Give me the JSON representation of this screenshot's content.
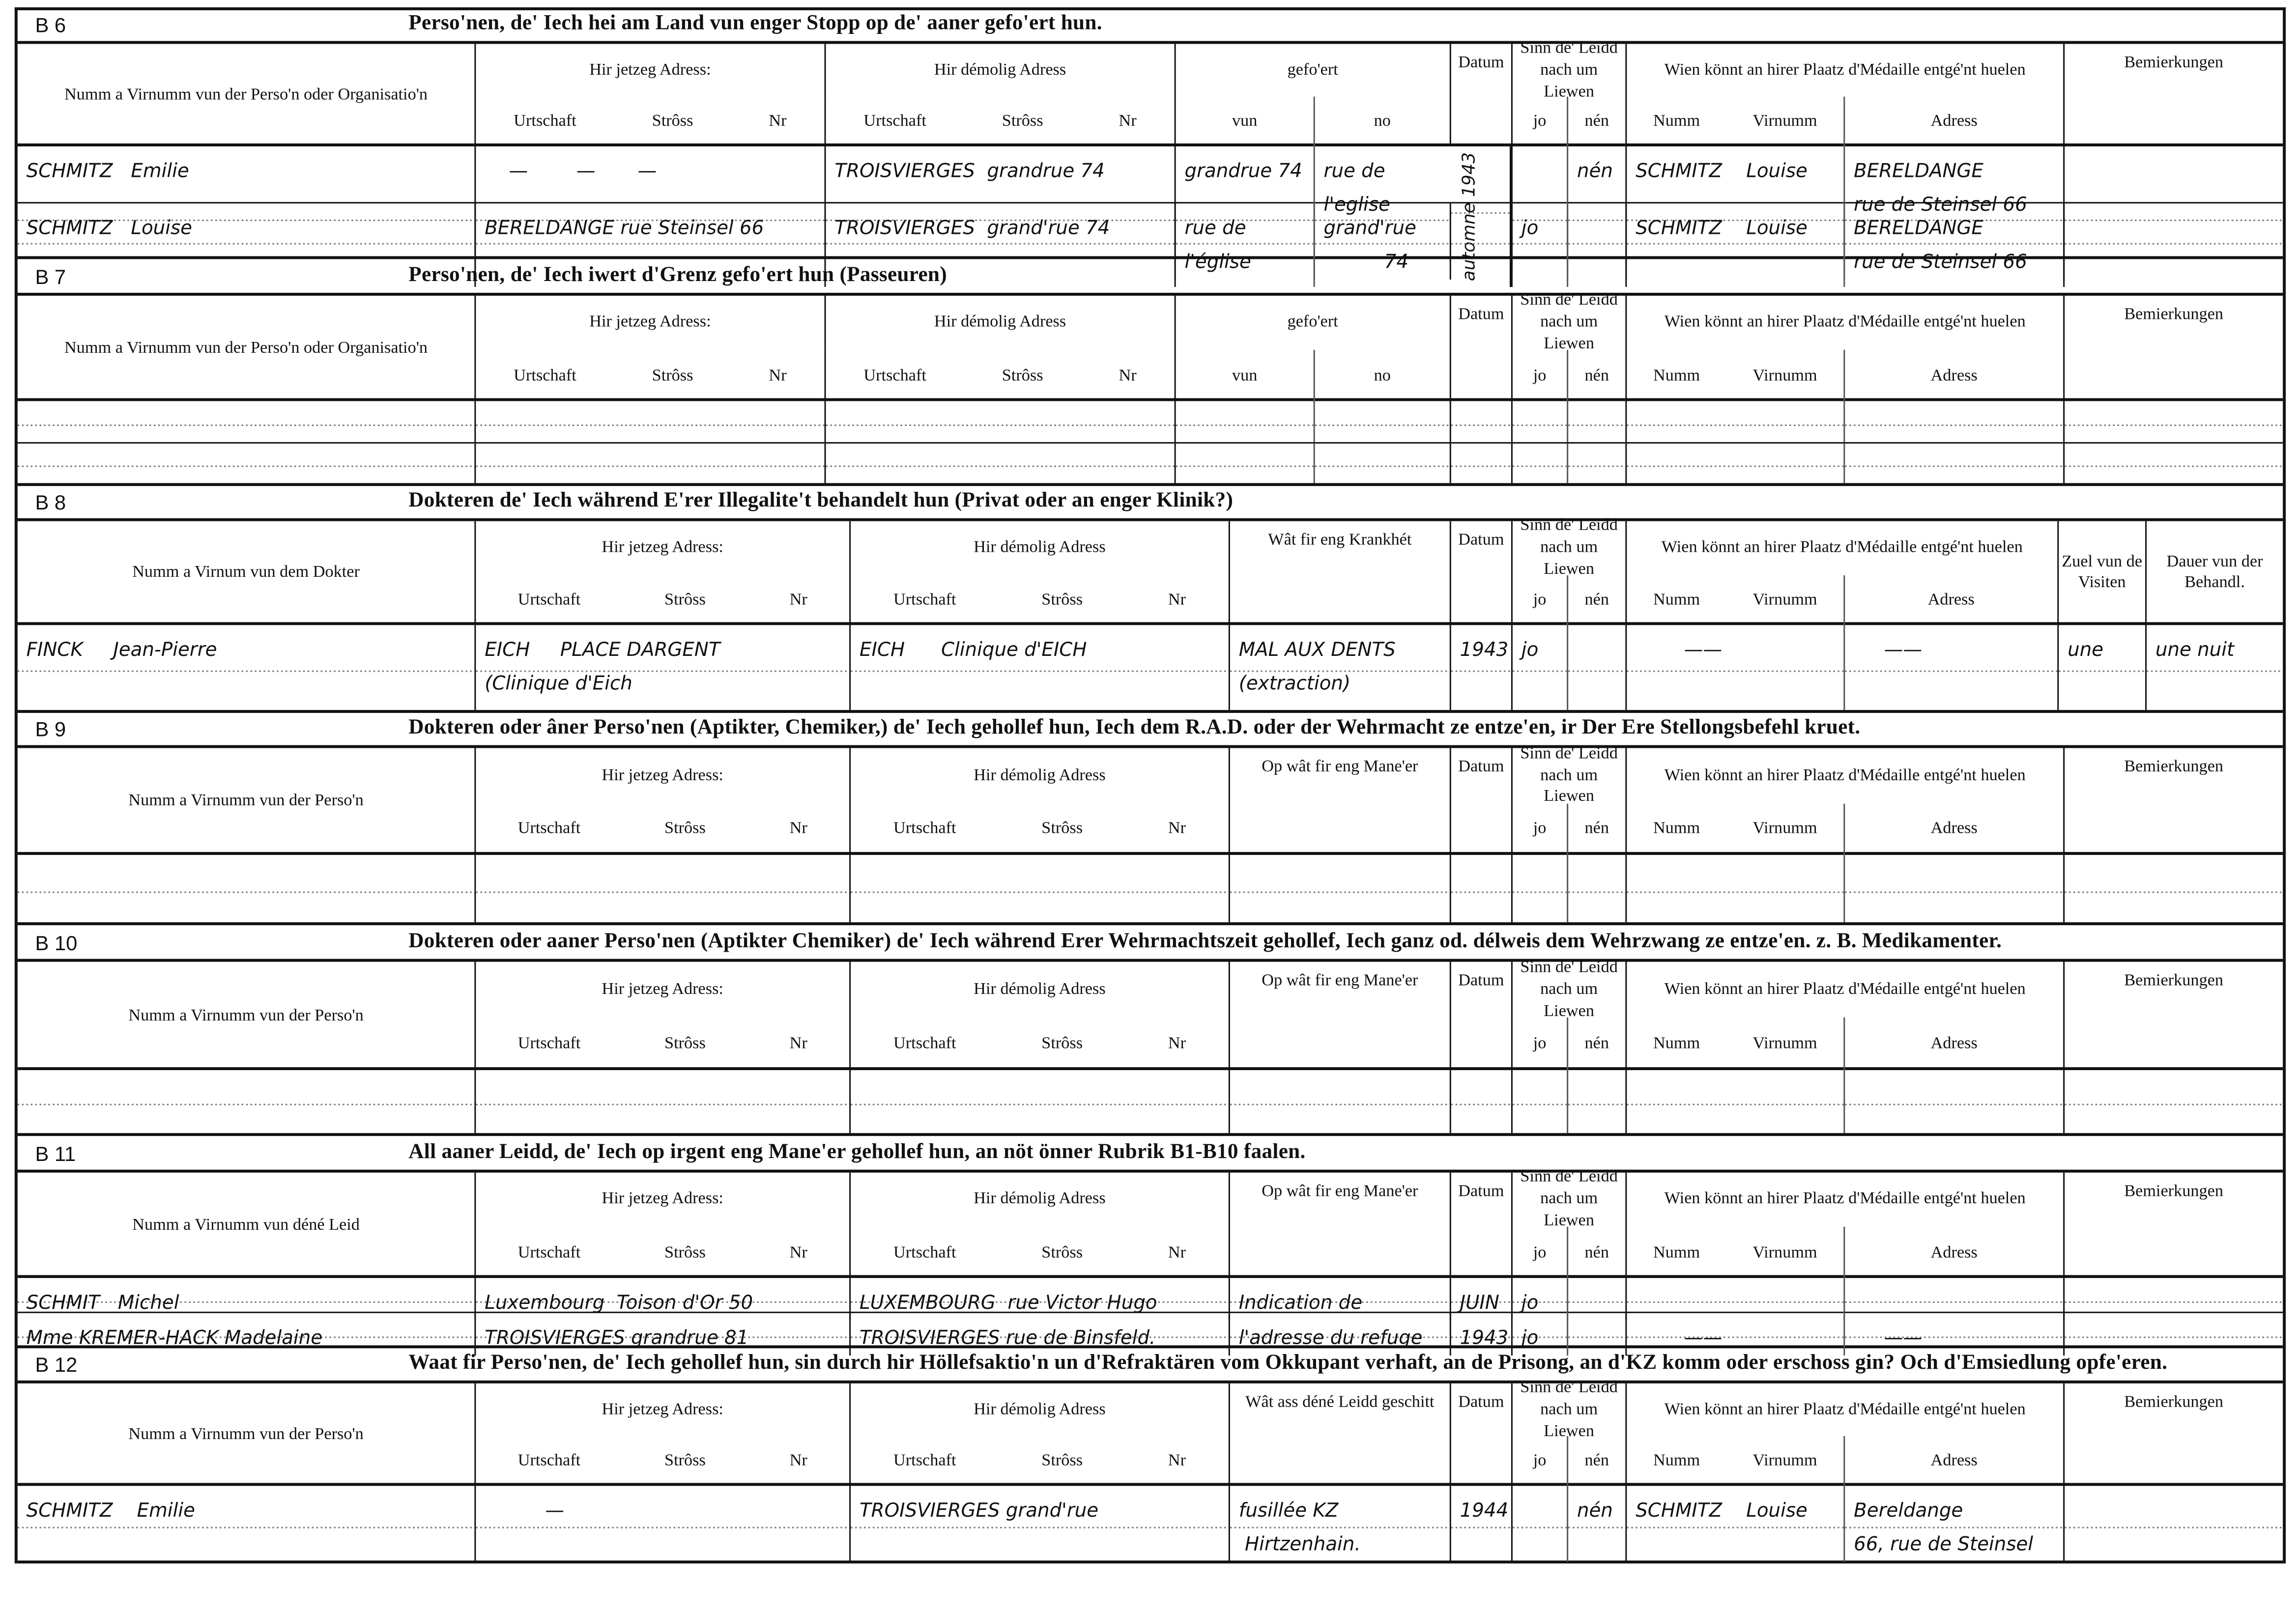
{
  "labels": {
    "sinn": "Sinn de' Leidd nach um Liewen",
    "wien": "Wien könnt an hirer Plaatz d'Médaille entgé'nt huelen",
    "current_address": "Hir jetzeg Adress:",
    "former_address": "Hir démolig Adress",
    "datum": "Datum",
    "bemierkungen": "Bemierkungen",
    "urtschaft": "Urtschaft",
    "stross": "Strôss",
    "nr": "Nr",
    "jo": "jo",
    "nen": "nén",
    "numm": "Numm",
    "virnumm": "Virnumm",
    "adress": "Adress"
  },
  "sections": [
    {
      "code": "B 6",
      "title": "Perso'nen, de' Iech hei am Land vun enger Stopp op de' aaner gefo'ert hun.",
      "name_label": "Numm a Virnumm vun der Perso'n oder Organisatio'n",
      "special_label": "gefo'ert",
      "special_subs": [
        "vun",
        "no"
      ],
      "rows": [
        [
          "SCHMITZ   Emilie",
          "    —        —       —",
          "TROISVIERGES  grandrue 74",
          "grandrue 74",
          "rue de\nl'eglise",
          "automne 1943",
          "",
          "nén",
          "SCHMITZ    Louise",
          "BERELDANGE\nrue de Steinsel 66",
          ""
        ],
        [
          "SCHMITZ   Louise",
          "BERELDANGE rue Steinsel 66",
          "TROISVIERGES  grand'rue 74",
          "rue de\nl'église",
          "grand'rue\n          74",
          "",
          "jo",
          "",
          "SCHMITZ    Louise",
          "BERELDANGE\nrue de Steinsel 66",
          ""
        ]
      ]
    },
    {
      "code": "B 7",
      "title": "Perso'nen, de' Iech iwert d'Grenz gefo'ert hun (Passeuren)",
      "name_label": "Numm a Virnumm vun der Perso'n oder Organisatio'n",
      "special_label": "gefo'ert",
      "special_subs": [
        "vun",
        "no"
      ],
      "rows": [
        [
          "",
          "",
          "",
          "",
          "",
          "",
          "",
          "",
          "",
          "",
          ""
        ],
        [
          "",
          "",
          "",
          "",
          "",
          "",
          "",
          "",
          "",
          "",
          ""
        ]
      ]
    },
    {
      "code": "B 8",
      "title": "Dokteren de' Iech während E'rer Illegalite't behandelt hun (Privat oder an enger Klinik?)",
      "name_label": "Numm a Virnum vun dem Dokter",
      "special_label": "Wât fir eng Krankhét",
      "zuel_label": "Zuel vun de Visiten",
      "dauer_label": "Dauer vun der Behandl.",
      "rows": [
        [
          "FINCK     Jean-Pierre",
          "EICH     PLACE DARGENT\n(Clinique d'Eich",
          "EICH      Clinique d'EICH",
          "MAL AUX DENTS\n(extraction)",
          "1943",
          "jo",
          "",
          "        ——",
          "     ——",
          "une",
          "une nuit"
        ]
      ]
    },
    {
      "code": "B 9",
      "title": "Dokteren oder âner Perso'nen (Aptikter, Chemiker,) de' Iech gehollef hun, Iech dem R.A.D. oder der Wehrmacht ze entze'en, ir Der Ere Stellongsbefehl kruet.",
      "name_label": "Numm a Virnumm vun der Perso'n",
      "special_label": "Op wât fir eng Mane'er",
      "rows": [
        [
          "",
          "",
          "",
          "",
          "",
          "",
          "",
          "",
          "",
          ""
        ]
      ]
    },
    {
      "code": "B 10",
      "title": "Dokteren oder aaner Perso'nen (Aptikter Chemiker) de' Iech während Erer Wehrmachtszeit gehollef, Iech ganz od. délweis dem Wehrzwang ze entze'en. z. B. Medikamenter.",
      "name_label": "Numm a Virnumm vun der Perso'n",
      "special_label": "Op wât fir eng Mane'er",
      "rows": [
        [
          "",
          "",
          "",
          "",
          "",
          "",
          "",
          "",
          "",
          ""
        ]
      ]
    },
    {
      "code": "B 11",
      "title": "All aaner Leidd, de' Iech op irgent eng Mane'er gehollef hun, an nöt önner Rubrik B1-B10 faalen.",
      "name_label": "Numm a Virnumm vun déné Leid",
      "special_label": "Op wât fir eng Mane'er",
      "rows": [
        [
          "SCHMIT   Michel",
          "Luxembourg  Toison d'Or 50",
          "LUXEMBOURG  rue Victor Hugo",
          "Indication de",
          "JUIN",
          "jo",
          "",
          "",
          "",
          ""
        ],
        [
          "Mme KREMER-HACK Madelaine",
          "TROISVIERGES grandrue 81",
          "TROISVIERGES rue de Binsfeld.",
          "l'adresse du refuge",
          "1943",
          "jo",
          "",
          "        ——",
          "     ——",
          ""
        ]
      ]
    },
    {
      "code": "B 12",
      "title": "Waat fir Perso'nen, de' Iech gehollef hun, sin durch hir Höllefsaktio'n un d'Refraktären vom Okkupant verhaft, an de Prisong, an d'KZ komm oder erschoss gin? Och d'Emsiedlung opfe'eren.",
      "name_label": "Numm a Virnumm vun der Perso'n",
      "special_label": "Wât ass déné Leidd geschitt",
      "rows": [
        [
          "SCHMITZ    Emilie",
          "          —",
          "TROISVIERGES grand'rue",
          "fusillée KZ\n Hirtzenhain.",
          "1944",
          "",
          "nén",
          "SCHMITZ    Louise",
          "Bereldange\n66, rue de Steinsel",
          ""
        ]
      ]
    }
  ]
}
